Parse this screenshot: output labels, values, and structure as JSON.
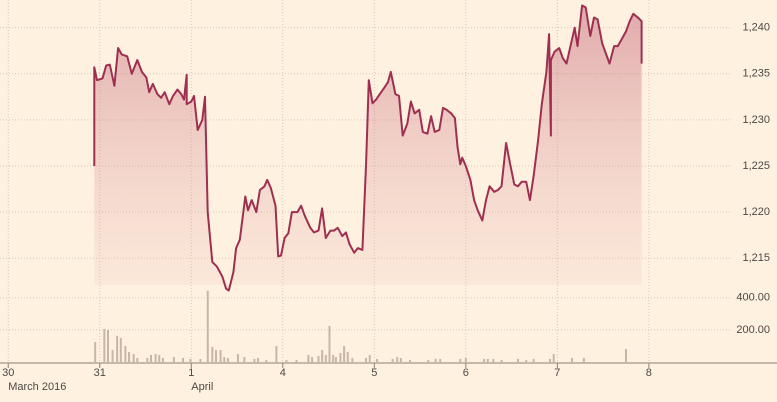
{
  "chart_data": [
    {
      "type": "area",
      "color": "#9e2f50",
      "grid": true,
      "xlim": [
        -0.09,
        8.4
      ],
      "ylim": [
        1212.1,
        1243.0
      ],
      "yticks": [
        {
          "value": 1215,
          "label": "1,215"
        },
        {
          "value": 1220,
          "label": "1,220"
        },
        {
          "value": 1225,
          "label": "1,225"
        },
        {
          "value": 1230,
          "label": "1,230"
        },
        {
          "value": 1235,
          "label": "1,235"
        },
        {
          "value": 1240,
          "label": "1,240"
        }
      ],
      "xticks": [
        {
          "value": 0,
          "label": "30"
        },
        {
          "value": 1,
          "label": "31"
        },
        {
          "value": 2,
          "label": "1"
        },
        {
          "value": 3,
          "label": "4"
        },
        {
          "value": 4,
          "label": "5"
        },
        {
          "value": 5,
          "label": "6"
        },
        {
          "value": 6,
          "label": "7"
        },
        {
          "value": 7,
          "label": "8"
        }
      ],
      "x_sublabels": [
        {
          "value": 0,
          "label": "March 2016"
        },
        {
          "value": 2,
          "label": "April"
        }
      ],
      "x": [
        0.94,
        0.94,
        0.97,
        1.03,
        1.07,
        1.11,
        1.16,
        1.2,
        1.24,
        1.3,
        1.35,
        1.41,
        1.46,
        1.51,
        1.54,
        1.58,
        1.63,
        1.67,
        1.71,
        1.76,
        1.8,
        1.85,
        1.89,
        1.92,
        1.95,
        1.95,
        2.0,
        2.03,
        2.07,
        2.12,
        2.15,
        2.18,
        2.23,
        2.28,
        2.34,
        2.38,
        2.41,
        2.46,
        2.49,
        2.53,
        2.59,
        2.62,
        2.66,
        2.71,
        2.75,
        2.8,
        2.83,
        2.87,
        2.92,
        2.95,
        2.98,
        3.02,
        3.06,
        3.1,
        3.16,
        3.2,
        3.24,
        3.3,
        3.34,
        3.39,
        3.43,
        3.47,
        3.52,
        3.56,
        3.6,
        3.65,
        3.69,
        3.73,
        3.78,
        3.82,
        3.87,
        3.91,
        3.94,
        3.98,
        4.02,
        4.06,
        4.11,
        4.15,
        4.18,
        4.23,
        4.27,
        4.31,
        4.36,
        4.4,
        4.44,
        4.49,
        4.53,
        4.58,
        4.62,
        4.66,
        4.71,
        4.75,
        4.79,
        4.84,
        4.88,
        4.91,
        4.94,
        4.96,
        5.0,
        5.05,
        5.09,
        5.13,
        5.18,
        5.22,
        5.26,
        5.31,
        5.35,
        5.39,
        5.44,
        5.48,
        5.53,
        5.57,
        5.61,
        5.66,
        5.7,
        5.74,
        5.79,
        5.83,
        5.88,
        5.91,
        5.93,
        5.93,
        5.97,
        6.02,
        6.06,
        6.1,
        6.15,
        6.19,
        6.22,
        6.27,
        6.31,
        6.36,
        6.4,
        6.44,
        6.49,
        6.53,
        6.57,
        6.62,
        6.66,
        6.7,
        6.75,
        6.79,
        6.83,
        6.88,
        6.92,
        6.92
      ],
      "values": [
        1225.0,
        1235.7,
        1234.3,
        1234.5,
        1235.9,
        1236.0,
        1233.7,
        1237.8,
        1237.1,
        1236.9,
        1235.0,
        1236.5,
        1235.2,
        1234.6,
        1233.0,
        1233.9,
        1232.8,
        1232.4,
        1233.0,
        1231.7,
        1232.6,
        1233.3,
        1232.8,
        1232.2,
        1234.9,
        1231.7,
        1232.0,
        1232.6,
        1228.9,
        1230.0,
        1232.5,
        1220.0,
        1214.6,
        1214.1,
        1213.0,
        1211.7,
        1211.5,
        1213.5,
        1216.1,
        1217.0,
        1221.7,
        1220.2,
        1221.3,
        1220.0,
        1222.4,
        1222.8,
        1223.5,
        1222.6,
        1220.7,
        1215.2,
        1215.3,
        1217.2,
        1217.7,
        1220.0,
        1220.0,
        1220.7,
        1219.6,
        1218.3,
        1217.8,
        1218.0,
        1220.4,
        1217.2,
        1218.0,
        1218.0,
        1218.3,
        1217.4,
        1217.8,
        1216.5,
        1215.6,
        1216.1,
        1215.9,
        1225.3,
        1234.3,
        1231.8,
        1232.2,
        1232.8,
        1233.5,
        1234.1,
        1235.2,
        1232.8,
        1232.6,
        1228.3,
        1229.6,
        1232.0,
        1230.7,
        1231.1,
        1228.7,
        1228.5,
        1230.4,
        1228.7,
        1228.9,
        1231.3,
        1231.1,
        1230.7,
        1230.2,
        1227.0,
        1225.2,
        1225.9,
        1225.0,
        1223.5,
        1221.3,
        1220.2,
        1219.1,
        1221.3,
        1222.8,
        1222.2,
        1222.4,
        1222.8,
        1227.5,
        1225.4,
        1223.0,
        1222.8,
        1223.3,
        1223.3,
        1221.3,
        1223.9,
        1227.8,
        1231.7,
        1235.2,
        1239.3,
        1228.3,
        1236.5,
        1237.4,
        1237.8,
        1236.7,
        1236.1,
        1238.3,
        1240.0,
        1238.0,
        1242.4,
        1242.2,
        1239.1,
        1241.1,
        1240.9,
        1238.3,
        1237.2,
        1236.1,
        1238.0,
        1238.0,
        1238.7,
        1239.6,
        1240.7,
        1241.5,
        1241.1,
        1240.7,
        1236.1
      ]
    },
    {
      "type": "bar",
      "color": "#c7b6a6",
      "grid": true,
      "ylim": [
        0,
        480
      ],
      "yticks": [
        {
          "value": 200,
          "label": "200.00"
        },
        {
          "value": 400,
          "label": "400.00"
        }
      ],
      "x": [
        0.95,
        1.05,
        1.09,
        1.14,
        1.19,
        1.23,
        1.28,
        1.32,
        1.37,
        1.41,
        1.52,
        1.56,
        1.61,
        1.65,
        1.69,
        1.81,
        1.91,
        1.99,
        2.1,
        2.18,
        2.23,
        2.27,
        2.32,
        2.36,
        2.4,
        2.51,
        2.58,
        2.69,
        2.73,
        2.82,
        2.93,
        3.04,
        3.15,
        3.28,
        3.32,
        3.39,
        3.43,
        3.47,
        3.51,
        3.55,
        3.58,
        3.63,
        3.67,
        3.71,
        3.76,
        3.91,
        3.95,
        4.03,
        4.2,
        4.25,
        4.29,
        4.39,
        4.59,
        4.67,
        4.72,
        4.94,
        5.0,
        5.2,
        5.24,
        5.3,
        5.39,
        5.57,
        5.66,
        5.74,
        5.92,
        5.96,
        6.16,
        6.29,
        6.75
      ],
      "values": [
        125,
        206,
        200,
        75,
        163,
        150,
        100,
        63,
        50,
        25,
        25,
        44,
        50,
        44,
        25,
        31,
        25,
        19,
        19,
        444,
        94,
        75,
        75,
        31,
        25,
        50,
        31,
        19,
        25,
        13,
        100,
        13,
        13,
        44,
        31,
        38,
        75,
        44,
        225,
        44,
        31,
        56,
        100,
        63,
        25,
        25,
        44,
        19,
        19,
        31,
        25,
        13,
        13,
        19,
        19,
        19,
        25,
        19,
        19,
        19,
        13,
        19,
        13,
        19,
        19,
        50,
        25,
        25,
        81
      ]
    }
  ]
}
